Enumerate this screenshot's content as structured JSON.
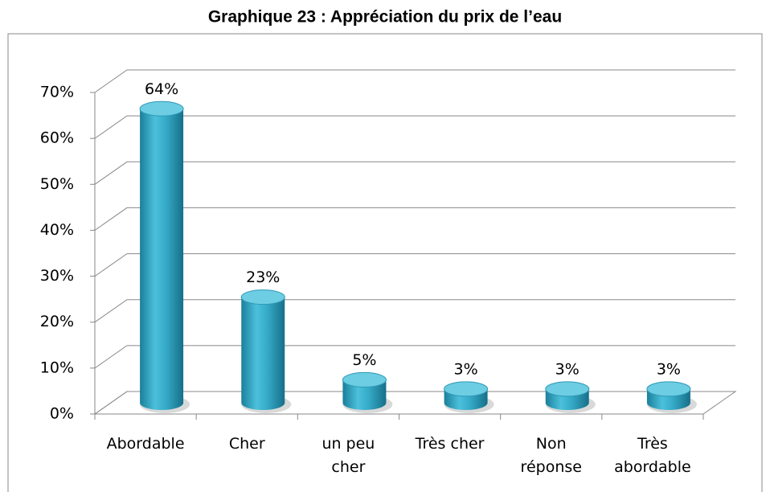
{
  "chart_data": {
    "type": "bar3d",
    "title": "Graphique 23 : Appréciation du prix de l’eau",
    "categories": [
      "Abordable",
      "Cher",
      "un peu cher",
      "Très cher",
      "Non réponse",
      "Très abordable"
    ],
    "values": [
      64,
      23,
      5,
      3,
      3,
      3
    ],
    "value_labels": [
      "64%",
      "23%",
      "5%",
      "3%",
      "3%",
      "3%"
    ],
    "color": "#2ea3c2",
    "ylim": [
      0,
      70
    ],
    "yticks": [
      {
        "value": 0,
        "label": "0%"
      },
      {
        "value": 10,
        "label": "10%"
      },
      {
        "value": 20,
        "label": "20%"
      },
      {
        "value": 30,
        "label": "30%"
      },
      {
        "value": 40,
        "label": "40%"
      },
      {
        "value": 50,
        "label": "50%"
      },
      {
        "value": 60,
        "label": "60%"
      },
      {
        "value": 70,
        "label": "70%"
      }
    ],
    "grid": true
  }
}
